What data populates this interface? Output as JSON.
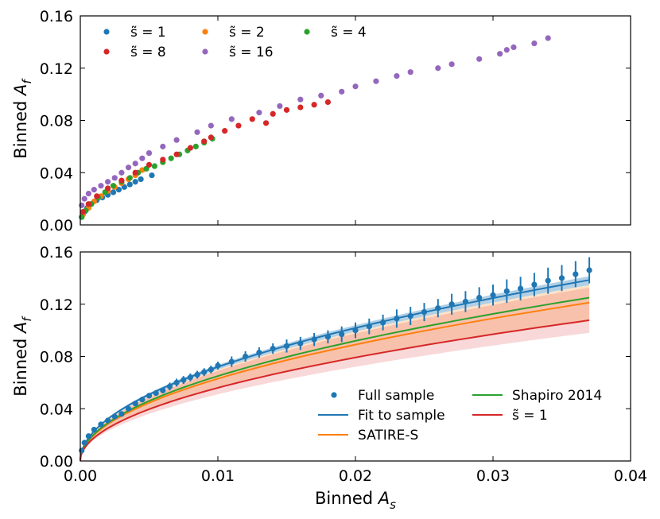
{
  "chart_data": [
    {
      "type": "scatter",
      "panel": "top",
      "ylabel": "Binned A_f",
      "xlabel": "",
      "xlim": [
        0.0,
        0.04
      ],
      "ylim": [
        0.0,
        0.16
      ],
      "xticks": [
        0.0,
        0.01,
        0.02,
        0.03,
        0.04
      ],
      "yticks": [
        0.0,
        0.04,
        0.08,
        0.12,
        0.16
      ],
      "ytick_labels": [
        "0.00",
        "0.04",
        "0.08",
        "0.12",
        "0.16"
      ],
      "legend_placement": "top-left",
      "legend_columns": 3,
      "series": [
        {
          "name": "s̃ = 1",
          "color": "#1f77b4",
          "x": [
            0.0001,
            0.0003,
            0.0005,
            0.0008,
            0.0012,
            0.0016,
            0.002,
            0.0024,
            0.0028,
            0.0032,
            0.0036,
            0.004,
            0.0044,
            0.0052
          ],
          "y": [
            0.006,
            0.01,
            0.013,
            0.016,
            0.019,
            0.021,
            0.023,
            0.025,
            0.027,
            0.029,
            0.031,
            0.033,
            0.035,
            0.038
          ]
        },
        {
          "name": "s̃ = 2",
          "color": "#ff7f0e",
          "x": [
            0.0002,
            0.0006,
            0.001,
            0.0015,
            0.002,
            0.0025,
            0.003,
            0.0035,
            0.004,
            0.0045
          ],
          "y": [
            0.008,
            0.013,
            0.018,
            0.022,
            0.026,
            0.029,
            0.032,
            0.035,
            0.038,
            0.042
          ]
        },
        {
          "name": "s̃ = 4",
          "color": "#2ca02c",
          "x": [
            0.0001,
            0.0004,
            0.0008,
            0.0013,
            0.0018,
            0.0024,
            0.003,
            0.0036,
            0.0042,
            0.0048,
            0.0054,
            0.006,
            0.0066,
            0.0072,
            0.0078,
            0.0084,
            0.009,
            0.0096
          ],
          "y": [
            0.006,
            0.011,
            0.016,
            0.021,
            0.025,
            0.03,
            0.033,
            0.036,
            0.04,
            0.043,
            0.045,
            0.048,
            0.051,
            0.054,
            0.057,
            0.06,
            0.063,
            0.066
          ]
        },
        {
          "name": "s̃ = 8",
          "color": "#d62728",
          "x": [
            0.0002,
            0.0006,
            0.0012,
            0.002,
            0.003,
            0.004,
            0.005,
            0.006,
            0.007,
            0.008,
            0.009,
            0.0095,
            0.0105,
            0.0115,
            0.0125,
            0.0135,
            0.014,
            0.015,
            0.016,
            0.017,
            0.018
          ],
          "y": [
            0.01,
            0.016,
            0.022,
            0.028,
            0.034,
            0.04,
            0.046,
            0.05,
            0.054,
            0.059,
            0.064,
            0.067,
            0.072,
            0.076,
            0.081,
            0.078,
            0.085,
            0.088,
            0.09,
            0.092,
            0.094
          ]
        },
        {
          "name": "s̃ = 16",
          "color": "#9467bd",
          "x": [
            0.0001,
            0.0003,
            0.0006,
            0.001,
            0.0015,
            0.002,
            0.0025,
            0.003,
            0.0035,
            0.004,
            0.0045,
            0.005,
            0.006,
            0.007,
            0.0085,
            0.0095,
            0.011,
            0.013,
            0.0145,
            0.016,
            0.0175,
            0.019,
            0.02,
            0.0215,
            0.023,
            0.024,
            0.026,
            0.027,
            0.029,
            0.0305,
            0.031,
            0.0315,
            0.033,
            0.034
          ],
          "y": [
            0.015,
            0.02,
            0.024,
            0.027,
            0.03,
            0.033,
            0.036,
            0.04,
            0.044,
            0.047,
            0.051,
            0.055,
            0.06,
            0.065,
            0.071,
            0.076,
            0.081,
            0.086,
            0.091,
            0.096,
            0.099,
            0.102,
            0.106,
            0.11,
            0.114,
            0.117,
            0.12,
            0.123,
            0.127,
            0.131,
            0.134,
            0.136,
            0.139,
            0.143
          ]
        }
      ]
    },
    {
      "type": "line",
      "panel": "bottom",
      "ylabel": "Binned A_f",
      "xlabel": "Binned A_s",
      "xlim": [
        0.0,
        0.04
      ],
      "ylim": [
        0.0,
        0.16
      ],
      "xticks": [
        0.0,
        0.01,
        0.02,
        0.03,
        0.04
      ],
      "xtick_labels": [
        "0.00",
        "0.01",
        "0.02",
        "0.03",
        "0.04"
      ],
      "yticks": [
        0.0,
        0.04,
        0.08,
        0.12,
        0.16
      ],
      "ytick_labels": [
        "0.00",
        "0.04",
        "0.08",
        "0.12",
        "0.16"
      ],
      "legend_placement": "bottom-right",
      "legend_columns": 2,
      "points": {
        "name": "Full sample",
        "color": "#1f77b4",
        "x": [
          0.0001,
          0.0003,
          0.0006,
          0.001,
          0.0015,
          0.002,
          0.0025,
          0.003,
          0.0035,
          0.004,
          0.0045,
          0.005,
          0.0055,
          0.006,
          0.0065,
          0.007,
          0.0075,
          0.008,
          0.0085,
          0.009,
          0.0095,
          0.01,
          0.011,
          0.012,
          0.013,
          0.014,
          0.015,
          0.016,
          0.017,
          0.018,
          0.019,
          0.02,
          0.021,
          0.022,
          0.023,
          0.024,
          0.025,
          0.026,
          0.027,
          0.028,
          0.029,
          0.03,
          0.031,
          0.032,
          0.033,
          0.034,
          0.035,
          0.036,
          0.037
        ],
        "y": [
          0.008,
          0.014,
          0.019,
          0.024,
          0.028,
          0.031,
          0.034,
          0.036,
          0.04,
          0.044,
          0.047,
          0.05,
          0.052,
          0.054,
          0.057,
          0.06,
          0.062,
          0.064,
          0.066,
          0.068,
          0.07,
          0.073,
          0.076,
          0.08,
          0.083,
          0.086,
          0.088,
          0.09,
          0.093,
          0.095,
          0.097,
          0.1,
          0.103,
          0.106,
          0.109,
          0.111,
          0.114,
          0.117,
          0.12,
          0.122,
          0.125,
          0.127,
          0.13,
          0.132,
          0.135,
          0.138,
          0.14,
          0.143,
          0.146
        ],
        "err": [
          0.002,
          0.002,
          0.002,
          0.002,
          0.002,
          0.002,
          0.002,
          0.002,
          0.002,
          0.002,
          0.002,
          0.002,
          0.002,
          0.002,
          0.003,
          0.003,
          0.003,
          0.003,
          0.003,
          0.003,
          0.003,
          0.003,
          0.004,
          0.004,
          0.004,
          0.004,
          0.005,
          0.005,
          0.005,
          0.005,
          0.006,
          0.006,
          0.006,
          0.006,
          0.007,
          0.007,
          0.007,
          0.007,
          0.008,
          0.008,
          0.008,
          0.008,
          0.009,
          0.009,
          0.009,
          0.01,
          0.01,
          0.01,
          0.01
        ]
      },
      "curves": [
        {
          "name": "Fit to sample",
          "color": "#1f77b4",
          "coef": 0.72,
          "exp": 0.5,
          "band": [
            0.7,
            0.735
          ],
          "band_opacity": 0.35
        },
        {
          "name": "SATIRE-S",
          "color": "#ff7f0e",
          "coef": 0.63,
          "exp": 0.5,
          "band": [
            0.56,
            0.7
          ],
          "band_opacity": 0.22
        },
        {
          "name": "Shapiro 2014",
          "color": "#2ca02c",
          "coef": 0.65,
          "exp": 0.5
        },
        {
          "name": "s̃ = 1",
          "color": "#d62728",
          "coef": 0.56,
          "exp": 0.5,
          "band": [
            0.51,
            0.69
          ],
          "band_opacity": 0.18
        }
      ],
      "curve_xmax": 0.037
    }
  ],
  "labels": {
    "top_ylabel_main": "Binned ",
    "top_ylabel_var": "A",
    "top_ylabel_sub": "f",
    "bottom_ylabel_main": "Binned ",
    "bottom_ylabel_var": "A",
    "bottom_ylabel_sub": "f",
    "xlabel_main": "Binned ",
    "xlabel_var": "A",
    "xlabel_sub": "s",
    "legend_top": [
      "s̃ = 1",
      "s̃ = 2",
      "s̃ = 4",
      "s̃ = 8",
      "s̃ = 16"
    ],
    "legend_bottom": [
      "Full sample",
      "Fit to sample",
      "SATIRE-S",
      "Shapiro 2014",
      "s̃ = 1"
    ]
  }
}
